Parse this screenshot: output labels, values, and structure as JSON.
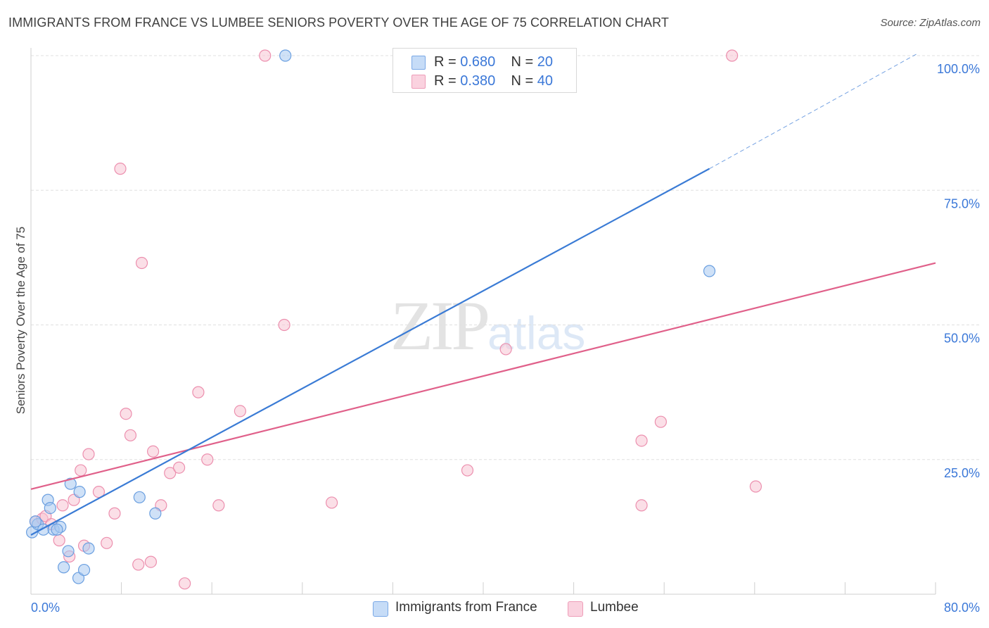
{
  "title": "IMMIGRANTS FROM FRANCE VS LUMBEE SENIORS POVERTY OVER THE AGE OF 75 CORRELATION CHART",
  "source": "Source: ZipAtlas.com",
  "watermark": {
    "zip": "ZIP",
    "atlas": "atlas"
  },
  "legend_top": {
    "rows": [
      {
        "r_label": "R = ",
        "r_value": "0.680",
        "n_label": "N = ",
        "n_value": "20"
      },
      {
        "r_label": "R = ",
        "r_value": "0.380",
        "n_label": "N = ",
        "n_value": "40"
      }
    ]
  },
  "legend_bottom": {
    "items": [
      {
        "label": "Immigrants from France"
      },
      {
        "label": "Lumbee"
      }
    ]
  },
  "colors": {
    "blue_fill": "#a8c8f0",
    "blue_stroke": "#6a9fe0",
    "blue_line": "#3a7bd5",
    "pink_fill": "#f7c4d4",
    "pink_stroke": "#ec8fae",
    "pink_line": "#e0608a",
    "tick_text": "#3b78d8",
    "grid": "#e0e0e0"
  },
  "chart_data": {
    "type": "scatter",
    "title": "IMMIGRANTS FROM FRANCE VS LUMBEE SENIORS POVERTY OVER THE AGE OF 75 CORRELATION CHART",
    "xlabel": "",
    "ylabel": "Seniors Poverty Over the Age of 75",
    "xlim": [
      0,
      80
    ],
    "ylim": [
      0,
      100
    ],
    "x_tick_labels": [
      "0.0%",
      "80.0%"
    ],
    "y_ticks": [
      25,
      50,
      75,
      100
    ],
    "y_tick_labels": [
      "25.0%",
      "50.0%",
      "75.0%",
      "100.0%"
    ],
    "grid": true,
    "series": [
      {
        "name": "Immigrants from France",
        "points": [
          [
            0.1,
            11.5
          ],
          [
            0.6,
            13.0
          ],
          [
            1.1,
            12.0
          ],
          [
            1.5,
            17.5
          ],
          [
            1.7,
            16.0
          ],
          [
            2.0,
            12.0
          ],
          [
            2.6,
            12.5
          ],
          [
            2.9,
            5.0
          ],
          [
            3.3,
            8.0
          ],
          [
            3.5,
            20.5
          ],
          [
            4.2,
            3.0
          ],
          [
            4.3,
            19.0
          ],
          [
            4.7,
            4.5
          ],
          [
            5.1,
            8.5
          ],
          [
            9.6,
            18.0
          ],
          [
            11.0,
            15.0
          ],
          [
            22.5,
            100.0
          ],
          [
            60.0,
            60.0
          ],
          [
            0.4,
            13.5
          ],
          [
            2.3,
            12.0
          ]
        ],
        "trend": {
          "x0": 0,
          "y0": 11.0,
          "x1": 60.0,
          "y1": 79.0,
          "dash_to_x": 78.5,
          "dash_to_y": 100.5
        }
      },
      {
        "name": "Lumbee",
        "points": [
          [
            0.4,
            13.5
          ],
          [
            1.0,
            14.0
          ],
          [
            1.3,
            14.5
          ],
          [
            1.8,
            13.0
          ],
          [
            2.5,
            10.0
          ],
          [
            2.8,
            16.5
          ],
          [
            3.4,
            7.0
          ],
          [
            3.8,
            17.5
          ],
          [
            4.4,
            23.0
          ],
          [
            4.7,
            9.0
          ],
          [
            5.1,
            26.0
          ],
          [
            6.0,
            19.0
          ],
          [
            6.7,
            9.5
          ],
          [
            7.4,
            15.0
          ],
          [
            7.9,
            79.0
          ],
          [
            8.4,
            33.5
          ],
          [
            8.8,
            29.5
          ],
          [
            9.5,
            5.5
          ],
          [
            9.8,
            61.5
          ],
          [
            10.6,
            6.0
          ],
          [
            10.8,
            26.5
          ],
          [
            11.5,
            16.5
          ],
          [
            12.3,
            22.5
          ],
          [
            13.1,
            23.5
          ],
          [
            13.6,
            2.0
          ],
          [
            14.8,
            37.5
          ],
          [
            15.6,
            25.0
          ],
          [
            16.6,
            16.5
          ],
          [
            18.5,
            34.0
          ],
          [
            20.7,
            100.0
          ],
          [
            22.4,
            50.0
          ],
          [
            26.6,
            17.0
          ],
          [
            38.5,
            100.0
          ],
          [
            38.6,
            23.0
          ],
          [
            42.0,
            45.5
          ],
          [
            54.0,
            28.5
          ],
          [
            54.0,
            16.5
          ],
          [
            55.7,
            32.0
          ],
          [
            62.0,
            100.0
          ],
          [
            64.1,
            20.0
          ]
        ],
        "trend": {
          "x0": 0,
          "y0": 19.5,
          "x1": 80.0,
          "y1": 61.5
        }
      }
    ]
  }
}
